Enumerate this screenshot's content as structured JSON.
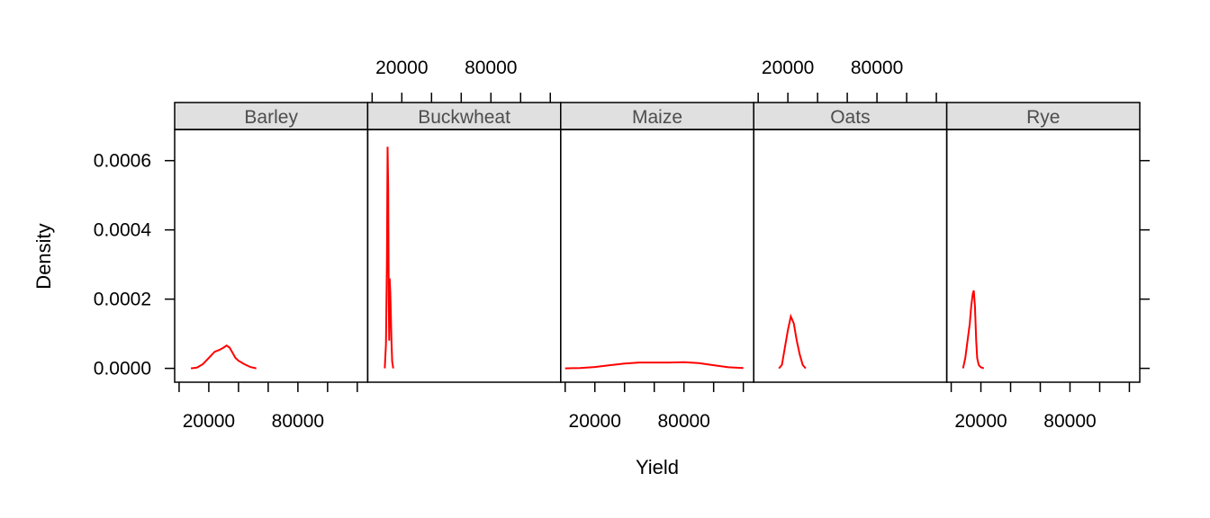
{
  "chart_data": {
    "type": "line",
    "plot_kind": "density",
    "xlabel": "Yield",
    "ylabel": "Density",
    "xlim": [
      -3000,
      127000
    ],
    "ylim": [
      -4e-05,
      0.00069
    ],
    "x_ticks": [
      0,
      20000,
      40000,
      60000,
      80000,
      100000,
      120000
    ],
    "x_tick_labels": [
      "20000",
      "80000"
    ],
    "x_tick_label_values": [
      20000,
      80000
    ],
    "y_ticks": [
      0,
      0.0002,
      0.0004,
      0.0006
    ],
    "y_tick_labels": [
      "0.0000",
      "0.0002",
      "0.0004",
      "0.0006"
    ],
    "grid": false,
    "legend": "none",
    "line_color": "#ff0000",
    "strip_background": "#e0e0e0",
    "panels": [
      {
        "name": "Barley",
        "x": [
          8000,
          12000,
          16000,
          20000,
          24000,
          27000,
          30000,
          32000,
          34000,
          36000,
          38000,
          40000,
          44000,
          48000,
          52000
        ],
        "y": [
          0.0,
          2e-06,
          1.2e-05,
          3e-05,
          4.8e-05,
          5.3e-05,
          6e-05,
          6.6e-05,
          6e-05,
          4.5e-05,
          3e-05,
          2.2e-05,
          1.2e-05,
          4e-06,
          0.0
        ]
      },
      {
        "name": "Buckwheat",
        "x": [
          8500,
          9300,
          10000,
          10400,
          10800,
          11200,
          11500,
          11800,
          12200,
          12600,
          13000,
          13500,
          14200
        ],
        "y": [
          0.0,
          7e-05,
          0.00032,
          0.00064,
          0.00052,
          0.0002,
          8e-05,
          0.00026,
          0.00022,
          0.00016,
          8e-05,
          2e-05,
          0.0
        ]
      },
      {
        "name": "Maize",
        "x": [
          0,
          10000,
          20000,
          30000,
          40000,
          50000,
          60000,
          70000,
          80000,
          90000,
          100000,
          110000,
          120000
        ],
        "y": [
          0.0,
          1e-06,
          4e-06,
          9e-06,
          1.4e-05,
          1.7e-05,
          1.7e-05,
          1.7e-05,
          1.8e-05,
          1.5e-05,
          9e-06,
          3e-06,
          1e-06
        ]
      },
      {
        "name": "Oats",
        "x": [
          14000,
          16000,
          18000,
          20000,
          22000,
          24000,
          26000,
          28000,
          30000,
          32000
        ],
        "y": [
          0.0,
          1e-05,
          6e-05,
          0.00011,
          0.00015,
          0.00013,
          8e-05,
          4e-05,
          1e-05,
          0.0
        ]
      },
      {
        "name": "Rye",
        "x": [
          8000,
          9500,
          11000,
          12500,
          13500,
          14500,
          15200,
          16000,
          16800,
          17500,
          18500,
          20000,
          22000
        ],
        "y": [
          0.0,
          3e-05,
          8e-05,
          0.00013,
          0.00018,
          0.000215,
          0.000225,
          0.00018,
          8e-05,
          3e-05,
          1e-05,
          3e-06,
          0.0
        ]
      }
    ]
  }
}
